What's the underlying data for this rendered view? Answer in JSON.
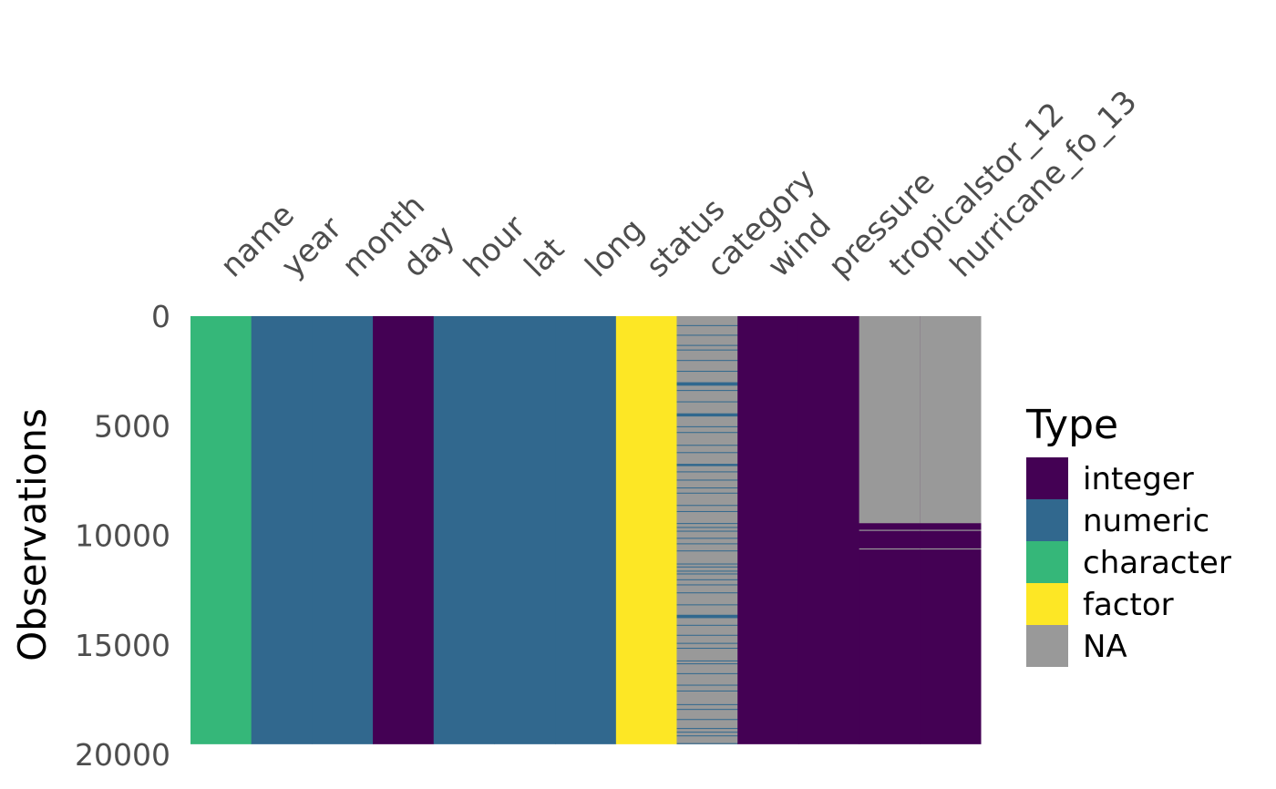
{
  "chart_data": {
    "type": "heatmap",
    "ylabel": "Observations",
    "ylim": [
      0,
      19537
    ],
    "y_ticks": [
      "0",
      "5000",
      "10000",
      "15000",
      "20000"
    ],
    "columns": [
      {
        "name": "name",
        "type": "character"
      },
      {
        "name": "year",
        "type": "numeric"
      },
      {
        "name": "month",
        "type": "numeric"
      },
      {
        "name": "day",
        "type": "integer"
      },
      {
        "name": "hour",
        "type": "numeric"
      },
      {
        "name": "lat",
        "type": "numeric"
      },
      {
        "name": "long",
        "type": "numeric"
      },
      {
        "name": "status",
        "type": "factor"
      },
      {
        "name": "category",
        "type": "numeric",
        "na_fraction": 0.78
      },
      {
        "name": "wind",
        "type": "integer"
      },
      {
        "name": "pressure",
        "type": "integer"
      },
      {
        "name": "tropicalstor_12",
        "type": "integer",
        "na_rows": [
          [
            0,
            9450
          ],
          [
            9750,
            9800
          ],
          [
            10600,
            10650
          ]
        ]
      },
      {
        "name": "hurricane_fo_13",
        "type": "integer",
        "na_rows": [
          [
            0,
            9450
          ],
          [
            9750,
            9800
          ],
          [
            10600,
            10650
          ]
        ]
      }
    ],
    "legend": {
      "title": "Type",
      "position": "right",
      "items": [
        {
          "label": "integer",
          "color": "#440154"
        },
        {
          "label": "numeric",
          "color": "#31688E"
        },
        {
          "label": "character",
          "color": "#35B779"
        },
        {
          "label": "factor",
          "color": "#FDE725"
        },
        {
          "label": "NA",
          "color": "#999999"
        }
      ]
    }
  }
}
